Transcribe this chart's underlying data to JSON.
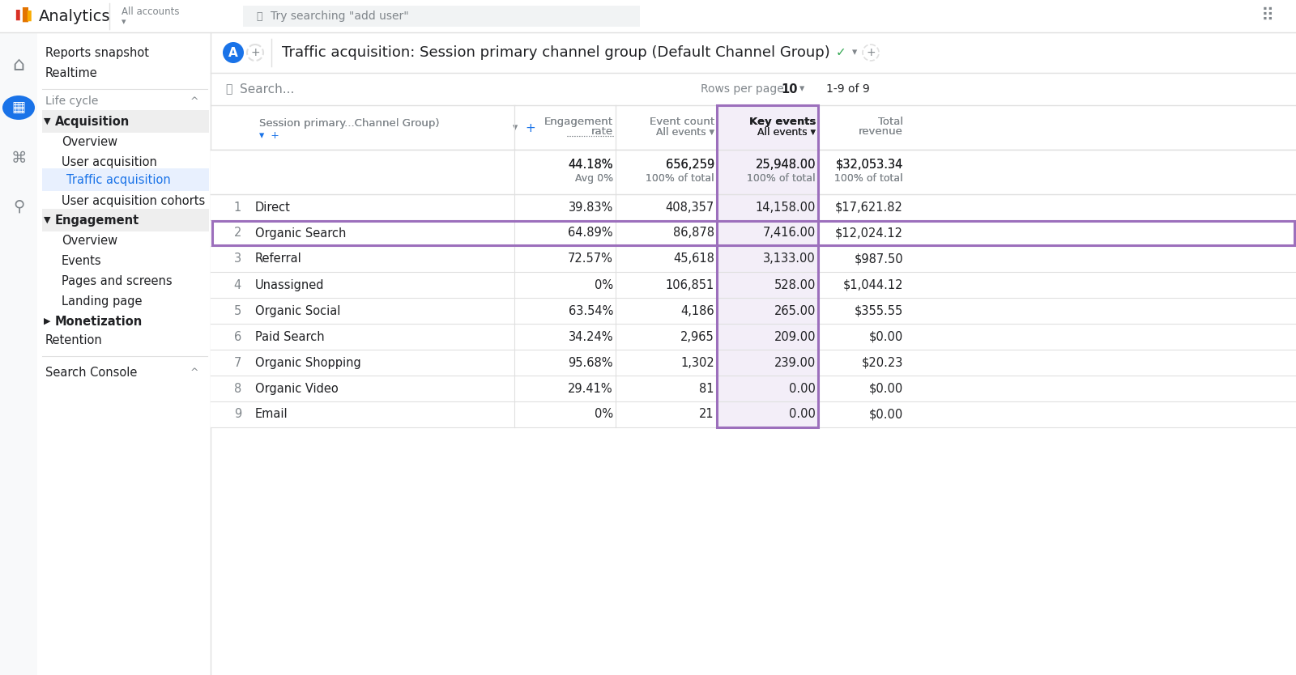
{
  "page_title": "Traffic acquisition: Session primary channel group (Default Channel Group)",
  "rows_per_page": "10",
  "rows_info": "1-9 of 9",
  "totals_row": {
    "engagement_rate": "44.18%",
    "engagement_rate_sub": "Avg 0%",
    "event_count": "656,259",
    "event_count_sub": "100% of total",
    "key_events": "25,948.00",
    "key_events_sub": "100% of total",
    "total_revenue": "$32,053.34",
    "total_revenue_sub": "100% of total"
  },
  "data_rows": [
    {
      "num": "1",
      "channel": "Direct",
      "engagement_rate": "39.83%",
      "event_count": "408,357",
      "key_events": "14,158.00",
      "total_revenue": "$17,621.82"
    },
    {
      "num": "2",
      "channel": "Organic Search",
      "engagement_rate": "64.89%",
      "event_count": "86,878",
      "key_events": "7,416.00",
      "total_revenue": "$12,024.12"
    },
    {
      "num": "3",
      "channel": "Referral",
      "engagement_rate": "72.57%",
      "event_count": "45,618",
      "key_events": "3,133.00",
      "total_revenue": "$987.50"
    },
    {
      "num": "4",
      "channel": "Unassigned",
      "engagement_rate": "0%",
      "event_count": "106,851",
      "key_events": "528.00",
      "total_revenue": "$1,044.12"
    },
    {
      "num": "5",
      "channel": "Organic Social",
      "engagement_rate": "63.54%",
      "event_count": "4,186",
      "key_events": "265.00",
      "total_revenue": "$355.55"
    },
    {
      "num": "6",
      "channel": "Paid Search",
      "engagement_rate": "34.24%",
      "event_count": "2,965",
      "key_events": "209.00",
      "total_revenue": "$0.00"
    },
    {
      "num": "7",
      "channel": "Organic Shopping",
      "engagement_rate": "95.68%",
      "event_count": "1,302",
      "key_events": "239.00",
      "total_revenue": "$20.23"
    },
    {
      "num": "8",
      "channel": "Organic Video",
      "engagement_rate": "29.41%",
      "event_count": "81",
      "key_events": "0.00",
      "total_revenue": "$0.00"
    },
    {
      "num": "9",
      "channel": "Email",
      "engagement_rate": "0%",
      "event_count": "21",
      "key_events": "0.00",
      "total_revenue": "$0.00"
    }
  ],
  "highlighted_row": 1,
  "colors": {
    "background": "#f8f9fa",
    "sidebar_bg": "#ffffff",
    "main_bg": "#ffffff",
    "highlight_border": "#9c6fbc",
    "highlight_col_bg": "#f3eef8",
    "active_nav_bg": "#e8f0fe",
    "active_nav_text": "#1a73e8",
    "text_dark": "#202124",
    "text_gray": "#80868b",
    "text_blue": "#1a73e8",
    "divider": "#e0e0e0",
    "nav_section_bg": "#eeeeee",
    "top_bar_bg": "#ffffff",
    "search_bar_bg": "#f1f3f4",
    "google_orange": "#e37400",
    "google_red": "#d93025",
    "google_yellow": "#f9ab00",
    "logo_bg": "#1a73e8",
    "green_check": "#34a853"
  }
}
